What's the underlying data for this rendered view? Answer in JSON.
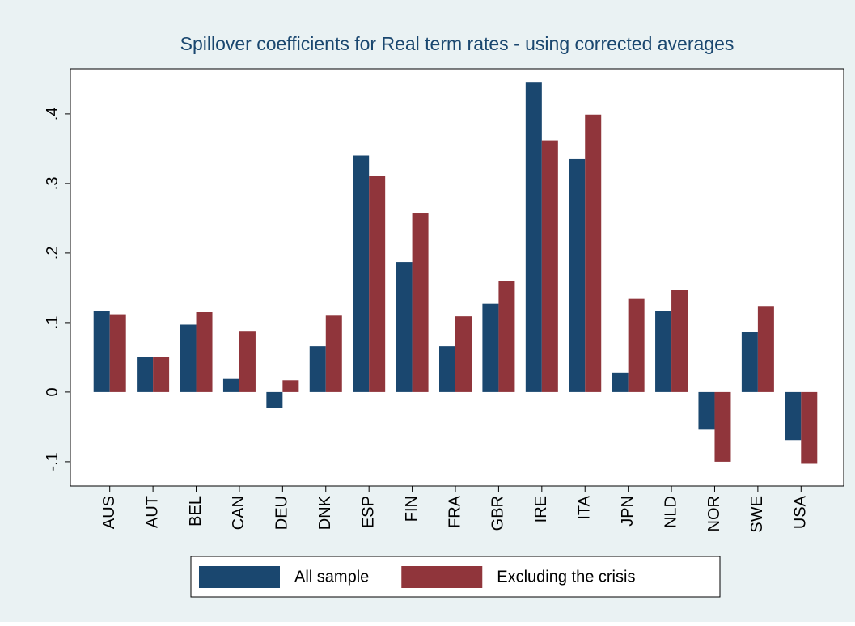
{
  "chart_data": {
    "type": "bar",
    "title": "Spillover coefficients for Real term rates - using corrected averages",
    "categories": [
      "AUS",
      "AUT",
      "BEL",
      "CAN",
      "DEU",
      "DNK",
      "ESP",
      "FIN",
      "FRA",
      "GBR",
      "IRE",
      "ITA",
      "JPN",
      "NLD",
      "NOR",
      "SWE",
      "USA"
    ],
    "series": [
      {
        "name": "All sample",
        "color": "#1a476f",
        "values": [
          0.117,
          0.051,
          0.097,
          0.02,
          -0.023,
          0.066,
          0.34,
          0.187,
          0.066,
          0.127,
          0.445,
          0.336,
          0.028,
          0.117,
          -0.054,
          0.086,
          -0.069
        ]
      },
      {
        "name": "Excluding the crisis",
        "color": "#90353b",
        "values": [
          0.112,
          0.051,
          0.115,
          0.088,
          0.017,
          0.11,
          0.311,
          0.258,
          0.109,
          0.16,
          0.362,
          0.399,
          0.134,
          0.147,
          -0.1,
          0.124,
          -0.103
        ]
      }
    ],
    "ylim": [
      -0.135,
      0.465
    ],
    "yticks": [
      {
        "value": -0.1,
        "label": "-.1"
      },
      0,
      {
        "value": 0.1,
        "label": ".1"
      },
      {
        "value": 0.2,
        "label": ".2"
      },
      {
        "value": 0.3,
        "label": ".3"
      },
      {
        "value": 0.4,
        "label": ".4"
      }
    ],
    "grid": false,
    "legend": "bottom"
  }
}
